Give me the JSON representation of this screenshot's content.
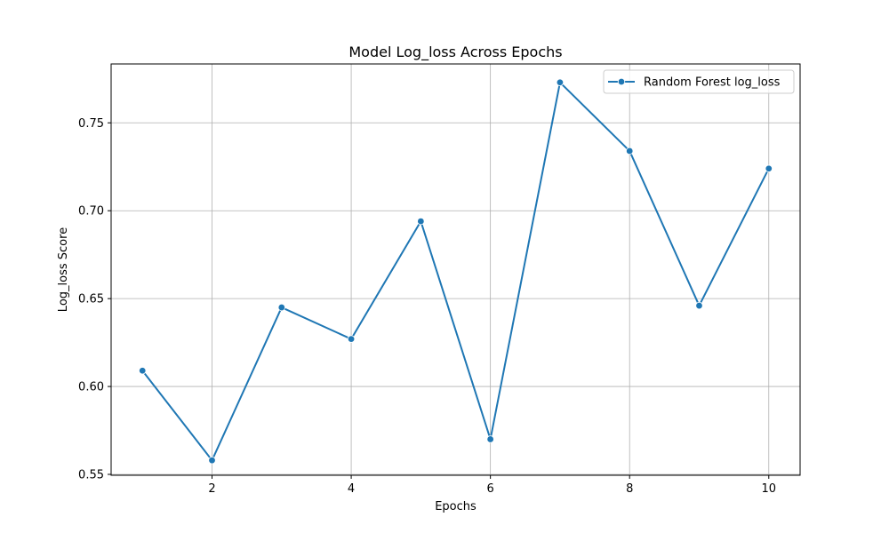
{
  "chart_data": {
    "type": "line",
    "title": "Model Log_loss Across Epochs",
    "xlabel": "Epochs",
    "ylabel": "Log_loss Score",
    "x": [
      1,
      2,
      3,
      4,
      5,
      6,
      7,
      8,
      9,
      10
    ],
    "series": [
      {
        "name": "Random Forest log_loss",
        "color": "#1f77b4",
        "values": [
          0.609,
          0.558,
          0.645,
          0.627,
          0.694,
          0.57,
          0.773,
          0.734,
          0.646,
          0.724
        ]
      }
    ],
    "xlim": [
      0.55,
      10.45
    ],
    "ylim": [
      0.5495,
      0.7835
    ],
    "xticks": [
      2,
      4,
      6,
      8,
      10
    ],
    "yticks": [
      0.55,
      0.6,
      0.65,
      0.7,
      0.75
    ],
    "ytick_labels": [
      "0.55",
      "0.60",
      "0.65",
      "0.70",
      "0.75"
    ],
    "grid": true,
    "legend_position": "top-right"
  }
}
